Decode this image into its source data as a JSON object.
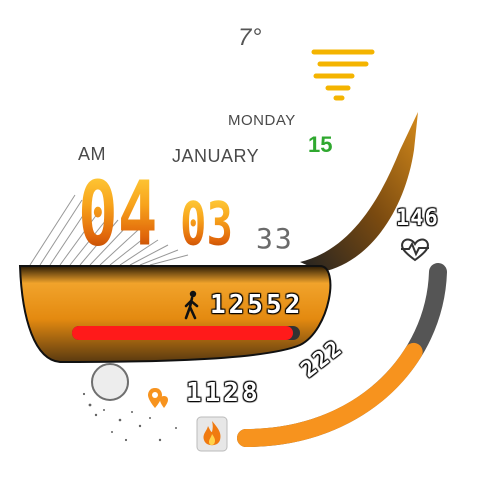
{
  "weather": {
    "temperature": "7°",
    "icon": "windy-haze-icon",
    "icon_color": "#f4b400"
  },
  "date": {
    "weekday": "MONDAY",
    "month": "JANUARY",
    "day": "15",
    "day_color": "#2fa82f"
  },
  "time": {
    "ampm": "AM",
    "hours": "04",
    "minutes": "03",
    "seconds": "33"
  },
  "steps": {
    "value": "12552",
    "icon": "walking-person-icon",
    "goal_progress": 0.97,
    "bar_color": "#ff1a1a"
  },
  "heart": {
    "value": "146",
    "icon": "heart-rate-icon"
  },
  "distance": {
    "value": "1128",
    "icon": "location-pin-icon"
  },
  "calories": {
    "value": "222",
    "icon": "flame-icon",
    "progress": 0.7
  },
  "colors": {
    "accent": "#f7931e",
    "dark": "#2b2b2b"
  }
}
